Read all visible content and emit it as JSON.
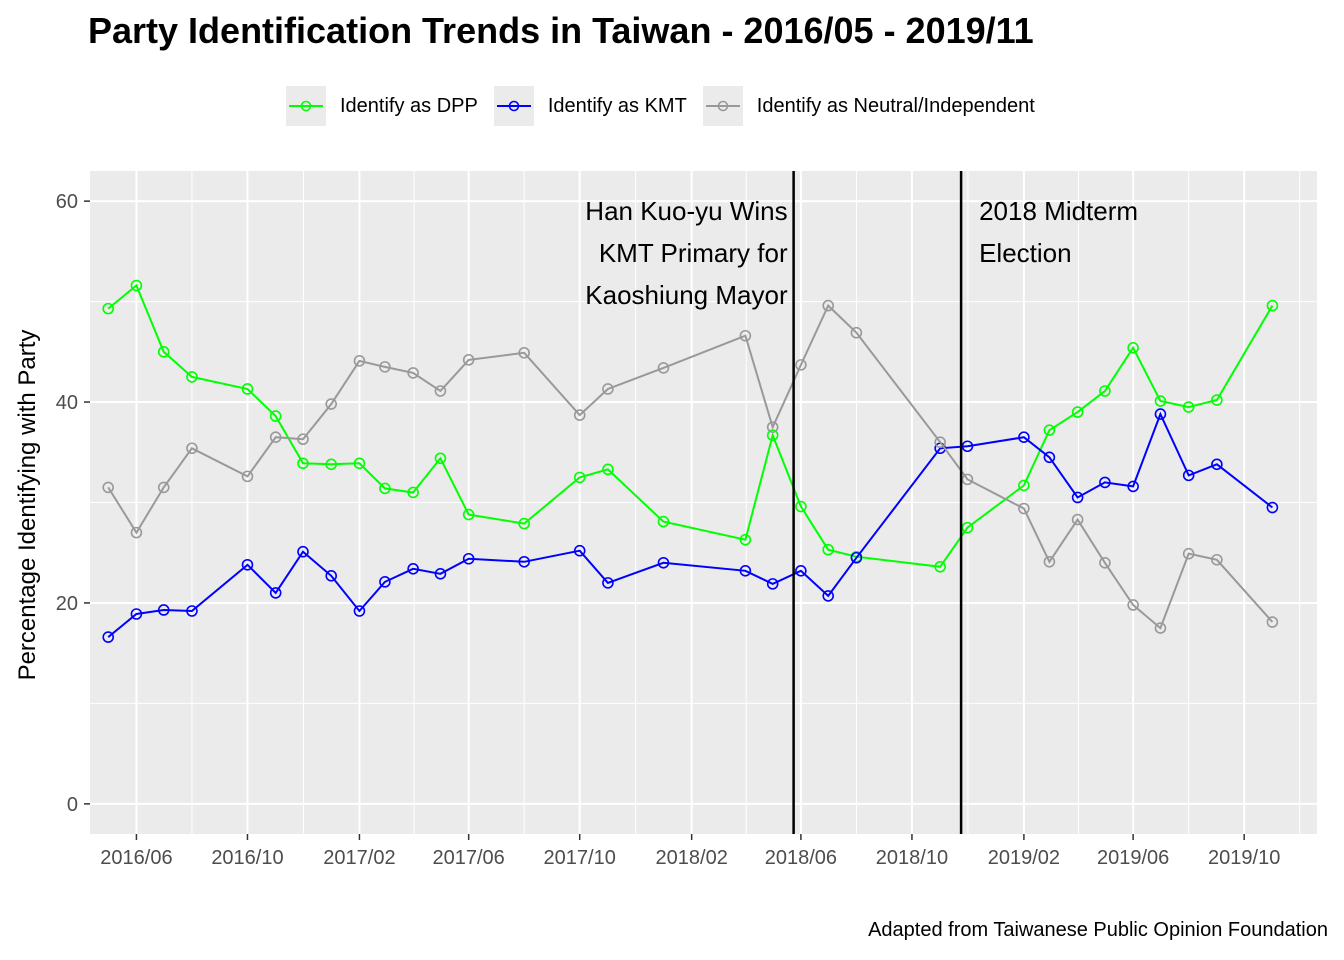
{
  "chart_data": {
    "type": "line",
    "title": "Party Identification Trends in Taiwan - 2016/05 - 2019/11",
    "ylabel": "Percentage Identifying with Party",
    "xlabel": "",
    "caption": "Adapted from Taiwanese Public Opinion Foundation",
    "ylim": [
      -3,
      63
    ],
    "yticks": [
      0,
      20,
      40,
      60
    ],
    "xlim": [
      "2016-04-11",
      "2019-12-20"
    ],
    "xticks": [
      {
        "date": "2016-06-01",
        "label": "2016/06"
      },
      {
        "date": "2016-10-01",
        "label": "2016/10"
      },
      {
        "date": "2017-02-01",
        "label": "2017/02"
      },
      {
        "date": "2017-06-01",
        "label": "2017/06"
      },
      {
        "date": "2017-10-01",
        "label": "2017/10"
      },
      {
        "date": "2018-02-01",
        "label": "2018/02"
      },
      {
        "date": "2018-06-01",
        "label": "2018/06"
      },
      {
        "date": "2018-10-01",
        "label": "2018/10"
      },
      {
        "date": "2019-02-01",
        "label": "2019/02"
      },
      {
        "date": "2019-06-01",
        "label": "2019/06"
      },
      {
        "date": "2019-10-01",
        "label": "2019/10"
      }
    ],
    "x": [
      "2016-05-01",
      "2016-06-01",
      "2016-07-01",
      "2016-08-01",
      "2016-10-01",
      "2016-11-01",
      "2016-12-01",
      "2017-01-01",
      "2017-02-01",
      "2017-03-01",
      "2017-04-01",
      "2017-05-01",
      "2017-06-01",
      "2017-08-01",
      "2017-10-01",
      "2017-11-01",
      "2018-01-01",
      "2018-04-01",
      "2018-05-01",
      "2018-06-01",
      "2018-07-01",
      "2018-08-01",
      "2018-11-01",
      "2018-12-01",
      "2019-02-01",
      "2019-03-01",
      "2019-04-01",
      "2019-05-01",
      "2019-06-01",
      "2019-07-01",
      "2019-08-01",
      "2019-09-01",
      "2019-11-01"
    ],
    "series": [
      {
        "name": "Identify as DPP",
        "color": "#00ff00",
        "values": [
          49.3,
          51.6,
          45.0,
          42.5,
          41.3,
          38.6,
          33.9,
          33.8,
          33.9,
          31.4,
          31.0,
          34.4,
          28.8,
          27.9,
          32.5,
          33.3,
          28.1,
          26.3,
          36.7,
          29.6,
          25.3,
          null,
          23.6,
          27.5,
          31.7,
          37.2,
          39.0,
          41.1,
          45.4,
          40.1,
          39.5,
          40.2,
          49.6
        ]
      },
      {
        "name": "Identify as KMT",
        "color": "#0000ff",
        "values": [
          16.6,
          18.9,
          19.3,
          19.2,
          23.8,
          21.0,
          25.1,
          22.7,
          19.2,
          22.1,
          23.4,
          22.9,
          24.4,
          24.1,
          25.2,
          22.0,
          24.0,
          23.2,
          21.9,
          23.2,
          20.7,
          24.5,
          35.4,
          35.6,
          36.5,
          34.5,
          30.5,
          32.0,
          31.6,
          38.8,
          32.7,
          33.8,
          29.5
        ]
      },
      {
        "name": "Identify as Neutral/Independent",
        "color": "#999999",
        "values": [
          31.5,
          27.0,
          31.5,
          35.4,
          32.6,
          36.5,
          36.3,
          39.8,
          44.1,
          43.5,
          42.9,
          41.1,
          44.2,
          44.9,
          38.7,
          41.3,
          43.4,
          46.6,
          37.5,
          43.7,
          49.6,
          46.9,
          36.0,
          32.3,
          29.4,
          24.1,
          28.3,
          24.0,
          19.8,
          17.5,
          24.9,
          24.3,
          18.1
        ]
      }
    ],
    "extra_points": [
      {
        "series": "Identify as DPP",
        "x": "2018-08-01",
        "y": 24.6
      }
    ],
    "annotations": [
      {
        "date": "2018-05-24",
        "lines": [
          "Han Kuo-yu Wins",
          "KMT Primary for",
          "Kaoshiung Mayor"
        ],
        "align": "right"
      },
      {
        "date": "2018-11-24",
        "lines": [
          "2018 Midterm",
          "Election"
        ],
        "align": "left"
      }
    ],
    "grid": true,
    "legend_position": "top"
  }
}
